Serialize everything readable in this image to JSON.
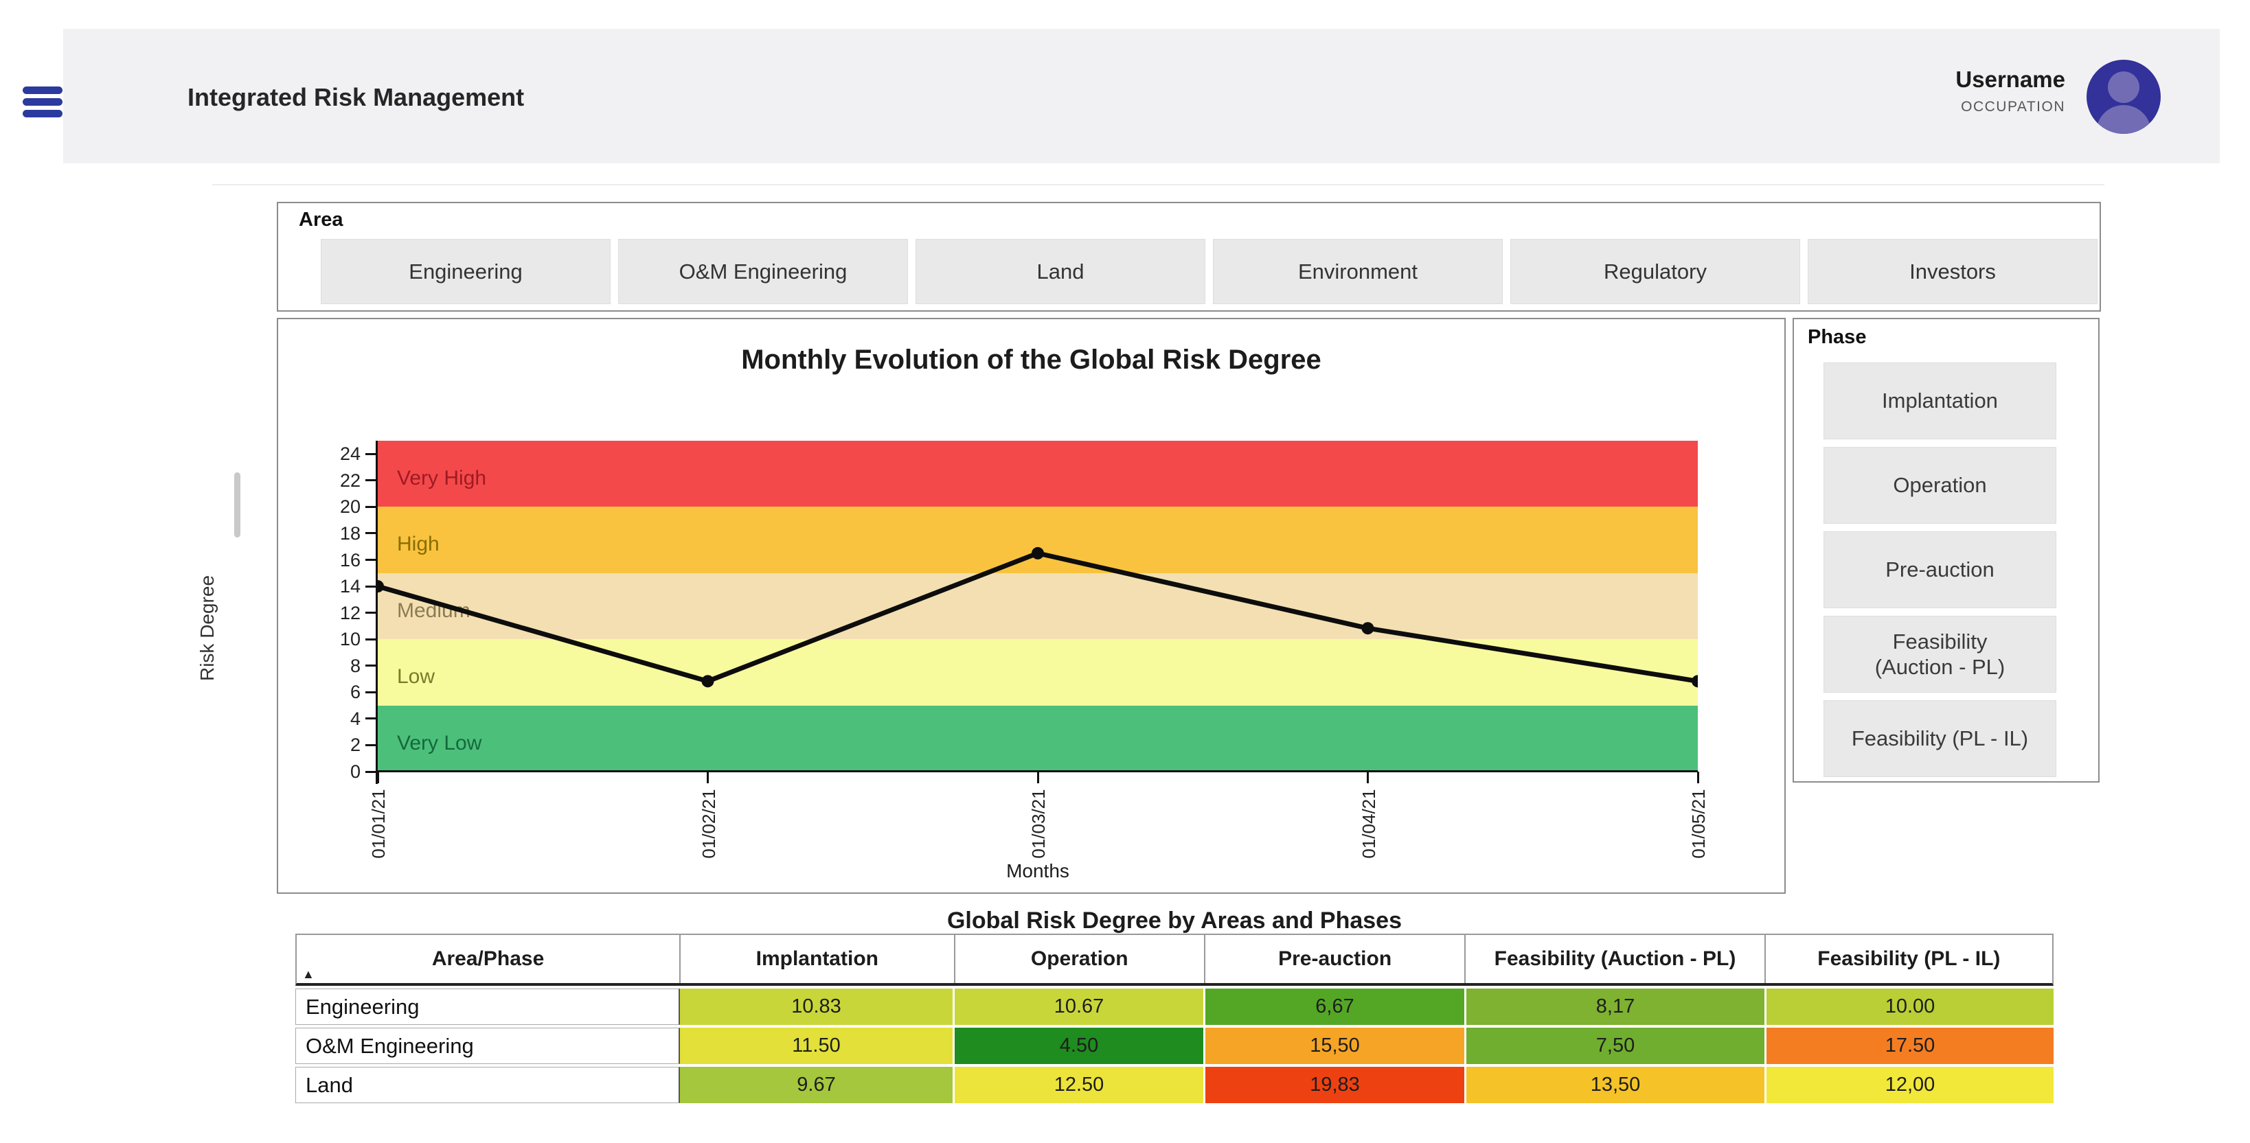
{
  "header": {
    "title": "Integrated Risk Management",
    "user": {
      "name": "Username",
      "occupation": "OCCUPATION"
    },
    "accent_color": "#2b3a9e",
    "avatar_color": "#33319a"
  },
  "area_filter": {
    "label": "Area",
    "buttons": [
      "Engineering",
      "O&M Engineering",
      "Land",
      "Environment",
      "Regulatory",
      "Investors"
    ]
  },
  "phase_filter": {
    "label": "Phase",
    "buttons": [
      "Implantation",
      "Operation",
      "Pre-auction",
      "Feasibility\n(Auction - PL)",
      "Feasibility (PL - IL)"
    ]
  },
  "chart_data": {
    "type": "line",
    "title": "Monthly Evolution of the Global Risk Degree",
    "xlabel": "Months",
    "ylabel": "Risk Degree",
    "x": [
      "01/01/21",
      "01/02/21",
      "01/03/21",
      "01/04/21",
      "01/05/21"
    ],
    "values": [
      14.0,
      6.83,
      16.5,
      10.83,
      6.83
    ],
    "ylim": [
      0,
      25
    ],
    "yticks": [
      0,
      2,
      4,
      6,
      8,
      10,
      12,
      14,
      16,
      18,
      20,
      22,
      24
    ],
    "grid": false,
    "line_color": "#0d0d0d",
    "bands": [
      {
        "label": "Very Low",
        "from": 0,
        "to": 5,
        "color": "#4cc07b",
        "label_color": "#14683c"
      },
      {
        "label": "Low",
        "from": 5,
        "to": 10,
        "color": "#f8fa9e",
        "label_color": "#7a7b2a"
      },
      {
        "label": "Medium",
        "from": 10,
        "to": 15,
        "color": "#f3dfb2",
        "label_color": "#8d7c52"
      },
      {
        "label": "High",
        "from": 15,
        "to": 20,
        "color": "#f9c33f",
        "label_color": "#8a6d00"
      },
      {
        "label": "Very High",
        "from": 20,
        "to": 25,
        "color": "#f4494b",
        "label_color": "#9e1b22"
      }
    ]
  },
  "table": {
    "title": "Global Risk Degree by Areas and Phases",
    "sort_icon": "▲",
    "columns": [
      "Area/Phase",
      "Implantation",
      "Operation",
      "Pre-auction",
      "Feasibility (Auction - PL)",
      "Feasibility (PL - IL)"
    ],
    "rows": [
      {
        "area": "Engineering",
        "cells": [
          {
            "text": "10.83",
            "color": "#c9d63a"
          },
          {
            "text": "10.67",
            "color": "#c9d63a"
          },
          {
            "text": "6,67",
            "color": "#54a725"
          },
          {
            "text": "8,17",
            "color": "#7eb230"
          },
          {
            "text": "10.00",
            "color": "#b9cf35"
          }
        ]
      },
      {
        "area": "O&M Engineering",
        "cells": [
          {
            "text": "11.50",
            "color": "#e2e039"
          },
          {
            "text": "4.50",
            "color": "#1e8c1e"
          },
          {
            "text": "15,50",
            "color": "#f6a425"
          },
          {
            "text": "7,50",
            "color": "#6fae2e"
          },
          {
            "text": "17.50",
            "color": "#f47d22"
          }
        ]
      },
      {
        "area": "Land",
        "cells": [
          {
            "text": "9.67",
            "color": "#a5c73d"
          },
          {
            "text": "12.50",
            "color": "#ece43a"
          },
          {
            "text": "19,83",
            "color": "#ee4111"
          },
          {
            "text": "13,50",
            "color": "#f5c328"
          },
          {
            "text": "12,00",
            "color": "#f1e839"
          }
        ]
      }
    ]
  }
}
